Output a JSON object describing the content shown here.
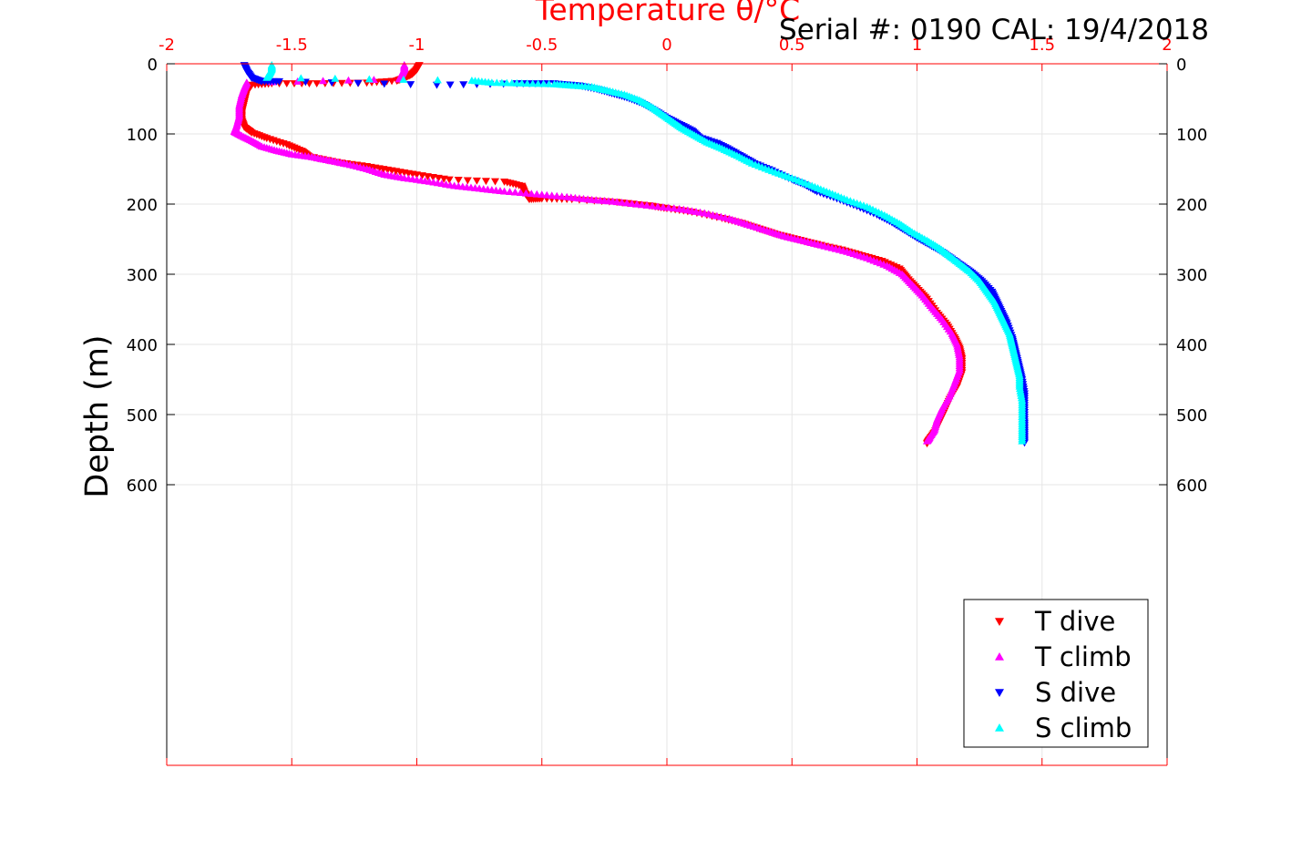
{
  "chart_data": {
    "type": "scatter",
    "title": "Temperature θ/°C",
    "annotation": "Serial #: 0190  CAL: 19/4/2018",
    "xlabel": "Temperature θ/°C",
    "ylabel": "Depth (m)",
    "xlim": [
      -2,
      2
    ],
    "ylim": [
      0,
      1000
    ],
    "y_reversed": true,
    "x_ticks": [
      "-2",
      "-1.5",
      "-1",
      "-0.5",
      "0",
      "0.5",
      "1",
      "1.5",
      "2"
    ],
    "y_ticks": [
      "0",
      "100",
      "200",
      "300",
      "400",
      "500",
      "600"
    ],
    "grid": true,
    "legend_position": "bottom-right",
    "colors": {
      "axis_top": "#ff0000",
      "axis_other": "#000000"
    },
    "series": [
      {
        "name": "T dive",
        "marker": "triangle-down",
        "color": "#ff0000",
        "points": [
          [
            -0.99,
            2
          ],
          [
            -1.0,
            8
          ],
          [
            -1.02,
            15
          ],
          [
            -1.05,
            20
          ],
          [
            -1.08,
            24
          ],
          [
            -1.2,
            27
          ],
          [
            -1.4,
            28
          ],
          [
            -1.58,
            28
          ],
          [
            -1.66,
            30
          ],
          [
            -1.68,
            40
          ],
          [
            -1.69,
            55
          ],
          [
            -1.7,
            70
          ],
          [
            -1.7,
            80
          ],
          [
            -1.69,
            90
          ],
          [
            -1.66,
            98
          ],
          [
            -1.6,
            106
          ],
          [
            -1.52,
            115
          ],
          [
            -1.46,
            124
          ],
          [
            -1.43,
            132
          ],
          [
            -1.32,
            140
          ],
          [
            -1.2,
            146
          ],
          [
            -1.1,
            152
          ],
          [
            -1.0,
            158
          ],
          [
            -0.87,
            165
          ],
          [
            -0.65,
            168
          ],
          [
            -0.58,
            174
          ],
          [
            -0.57,
            183
          ],
          [
            -0.55,
            193
          ],
          [
            -0.5,
            192
          ],
          [
            -0.38,
            193
          ],
          [
            -0.2,
            197
          ],
          [
            -0.07,
            202
          ],
          [
            0.0,
            206
          ],
          [
            0.1,
            211
          ],
          [
            0.22,
            220
          ],
          [
            0.3,
            227
          ],
          [
            0.37,
            235
          ],
          [
            0.44,
            243
          ],
          [
            0.52,
            250
          ],
          [
            0.6,
            257
          ],
          [
            0.7,
            265
          ],
          [
            0.78,
            273
          ],
          [
            0.86,
            281
          ],
          [
            0.93,
            292
          ],
          [
            0.96,
            305
          ],
          [
            1.0,
            320
          ],
          [
            1.04,
            335
          ],
          [
            1.08,
            355
          ],
          [
            1.12,
            372
          ],
          [
            1.15,
            390
          ],
          [
            1.17,
            405
          ],
          [
            1.18,
            420
          ],
          [
            1.18,
            440
          ],
          [
            1.16,
            460
          ],
          [
            1.13,
            478
          ],
          [
            1.11,
            495
          ],
          [
            1.09,
            510
          ],
          [
            1.07,
            525
          ],
          [
            1.05,
            535
          ],
          [
            1.04,
            541
          ]
        ]
      },
      {
        "name": "T climb",
        "marker": "triangle-up",
        "color": "#ff00ff",
        "points": [
          [
            -1.05,
            2
          ],
          [
            -1.05,
            8
          ],
          [
            -1.06,
            15
          ],
          [
            -1.07,
            22
          ],
          [
            -1.68,
            27
          ],
          [
            -1.69,
            35
          ],
          [
            -1.7,
            45
          ],
          [
            -1.71,
            60
          ],
          [
            -1.71,
            75
          ],
          [
            -1.72,
            88
          ],
          [
            -1.73,
            97
          ],
          [
            -1.7,
            103
          ],
          [
            -1.66,
            110
          ],
          [
            -1.62,
            118
          ],
          [
            -1.56,
            124
          ],
          [
            -1.5,
            129
          ],
          [
            -1.42,
            133
          ],
          [
            -1.35,
            138
          ],
          [
            -1.28,
            143
          ],
          [
            -1.2,
            150
          ],
          [
            -1.13,
            158
          ],
          [
            -1.05,
            163
          ],
          [
            -0.95,
            168
          ],
          [
            -0.85,
            174
          ],
          [
            -0.75,
            178
          ],
          [
            -0.65,
            182
          ],
          [
            -0.52,
            186
          ],
          [
            -0.4,
            190
          ],
          [
            -0.3,
            194
          ],
          [
            -0.2,
            197
          ],
          [
            -0.08,
            202
          ],
          [
            0.05,
            207
          ],
          [
            0.15,
            213
          ],
          [
            0.25,
            221
          ],
          [
            0.32,
            229
          ],
          [
            0.4,
            238
          ],
          [
            0.47,
            246
          ],
          [
            0.55,
            253
          ],
          [
            0.63,
            260
          ],
          [
            0.72,
            268
          ],
          [
            0.8,
            277
          ],
          [
            0.88,
            288
          ],
          [
            0.94,
            300
          ],
          [
            0.98,
            315
          ],
          [
            1.02,
            330
          ],
          [
            1.06,
            348
          ],
          [
            1.1,
            365
          ],
          [
            1.14,
            385
          ],
          [
            1.16,
            400
          ],
          [
            1.17,
            418
          ],
          [
            1.17,
            437
          ],
          [
            1.15,
            456
          ],
          [
            1.13,
            474
          ],
          [
            1.1,
            492
          ],
          [
            1.08,
            508
          ],
          [
            1.07,
            522
          ],
          [
            1.05,
            533
          ],
          [
            1.04,
            538
          ]
        ]
      },
      {
        "name": "S dive",
        "marker": "triangle-down",
        "color": "#0000ff",
        "points": [
          [
            -1.69,
            2
          ],
          [
            -1.68,
            10
          ],
          [
            -1.66,
            20
          ],
          [
            -1.62,
            25
          ],
          [
            -1.55,
            25
          ],
          [
            -0.92,
            30
          ],
          [
            -0.6,
            28
          ],
          [
            -0.45,
            28
          ],
          [
            -0.35,
            31
          ],
          [
            -0.28,
            36
          ],
          [
            -0.22,
            42
          ],
          [
            -0.16,
            48
          ],
          [
            -0.1,
            56
          ],
          [
            -0.05,
            66
          ],
          [
            0.0,
            77
          ],
          [
            0.05,
            86
          ],
          [
            0.1,
            95
          ],
          [
            0.13,
            105
          ],
          [
            0.2,
            113
          ],
          [
            0.25,
            122
          ],
          [
            0.3,
            132
          ],
          [
            0.35,
            142
          ],
          [
            0.42,
            152
          ],
          [
            0.5,
            165
          ],
          [
            0.55,
            172
          ],
          [
            0.6,
            182
          ],
          [
            0.68,
            192
          ],
          [
            0.76,
            203
          ],
          [
            0.84,
            215
          ],
          [
            0.9,
            226
          ],
          [
            0.95,
            237
          ],
          [
            1.0,
            248
          ],
          [
            1.05,
            258
          ],
          [
            1.1,
            268
          ],
          [
            1.14,
            278
          ],
          [
            1.18,
            288
          ],
          [
            1.22,
            298
          ],
          [
            1.26,
            310
          ],
          [
            1.3,
            325
          ],
          [
            1.32,
            340
          ],
          [
            1.34,
            355
          ],
          [
            1.36,
            370
          ],
          [
            1.38,
            390
          ],
          [
            1.39,
            405
          ],
          [
            1.4,
            420
          ],
          [
            1.41,
            435
          ],
          [
            1.42,
            450
          ],
          [
            1.43,
            470
          ],
          [
            1.43,
            490
          ],
          [
            1.43,
            510
          ],
          [
            1.43,
            525
          ],
          [
            1.43,
            540
          ]
        ]
      },
      {
        "name": "S climb",
        "marker": "triangle-up",
        "color": "#00ffff",
        "points": [
          [
            -1.58,
            2
          ],
          [
            -1.58,
            8
          ],
          [
            -1.59,
            15
          ],
          [
            -1.6,
            20
          ],
          [
            -0.78,
            24
          ],
          [
            -0.7,
            27
          ],
          [
            -0.58,
            28
          ],
          [
            -0.45,
            29
          ],
          [
            -0.38,
            31
          ],
          [
            -0.3,
            33
          ],
          [
            -0.24,
            38
          ],
          [
            -0.17,
            44
          ],
          [
            -0.11,
            52
          ],
          [
            -0.06,
            62
          ],
          [
            -0.02,
            72
          ],
          [
            0.02,
            82
          ],
          [
            0.06,
            92
          ],
          [
            0.11,
            102
          ],
          [
            0.16,
            112
          ],
          [
            0.22,
            121
          ],
          [
            0.28,
            131
          ],
          [
            0.34,
            142
          ],
          [
            0.42,
            153
          ],
          [
            0.5,
            163
          ],
          [
            0.58,
            174
          ],
          [
            0.65,
            184
          ],
          [
            0.72,
            194
          ],
          [
            0.8,
            204
          ],
          [
            0.87,
            216
          ],
          [
            0.93,
            228
          ],
          [
            0.98,
            240
          ],
          [
            1.04,
            252
          ],
          [
            1.09,
            263
          ],
          [
            1.13,
            274
          ],
          [
            1.17,
            285
          ],
          [
            1.21,
            296
          ],
          [
            1.25,
            310
          ],
          [
            1.28,
            325
          ],
          [
            1.31,
            340
          ],
          [
            1.33,
            355
          ],
          [
            1.35,
            370
          ],
          [
            1.37,
            385
          ],
          [
            1.38,
            400
          ],
          [
            1.39,
            415
          ],
          [
            1.4,
            430
          ],
          [
            1.41,
            445
          ],
          [
            1.41,
            460
          ],
          [
            1.42,
            480
          ],
          [
            1.42,
            500
          ],
          [
            1.42,
            520
          ],
          [
            1.42,
            538
          ]
        ]
      }
    ]
  }
}
